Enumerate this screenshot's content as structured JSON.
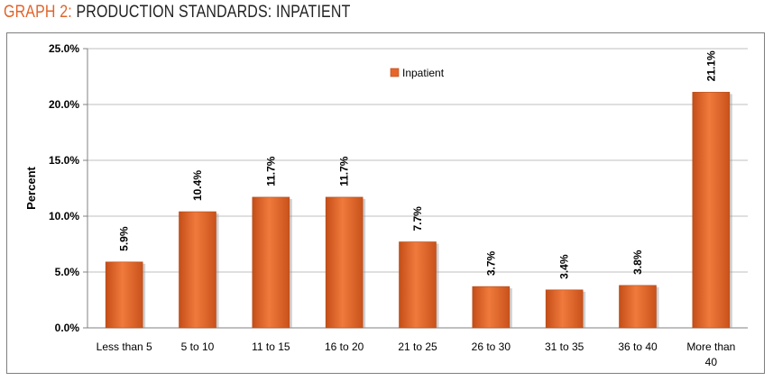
{
  "header": {
    "prefix": "GRAPH 2:",
    "rest": "PRODUCTION STANDARDS: INPATIENT"
  },
  "colors": {
    "accent": "#e0632a",
    "bar": "#e8652a",
    "gridline": "#bfbfbf",
    "text": "#000000"
  },
  "chart_data": {
    "type": "bar",
    "title": "",
    "xlabel": "",
    "ylabel": "Percent",
    "ylim": [
      0,
      25
    ],
    "yticks": [
      "0.0%",
      "5.0%",
      "10.0%",
      "15.0%",
      "20.0%",
      "25.0%"
    ],
    "categories": [
      [
        "Less than 5"
      ],
      [
        "5 to 10"
      ],
      [
        "11 to 15"
      ],
      [
        "16 to 20"
      ],
      [
        "21 to 25"
      ],
      [
        "26 to 30"
      ],
      [
        "31 to 35"
      ],
      [
        "36 to 40"
      ],
      [
        "More than",
        "40"
      ]
    ],
    "series": [
      {
        "name": "Inpatient",
        "values": [
          5.9,
          10.4,
          11.7,
          11.7,
          7.7,
          3.7,
          3.4,
          3.8,
          21.1
        ],
        "labels": [
          "5.9%",
          "10.4%",
          "11.7%",
          "11.7%",
          "7.7%",
          "3.7%",
          "3.4%",
          "3.8%",
          "21.1%"
        ]
      }
    ],
    "grid": true,
    "legend": "top-center"
  }
}
